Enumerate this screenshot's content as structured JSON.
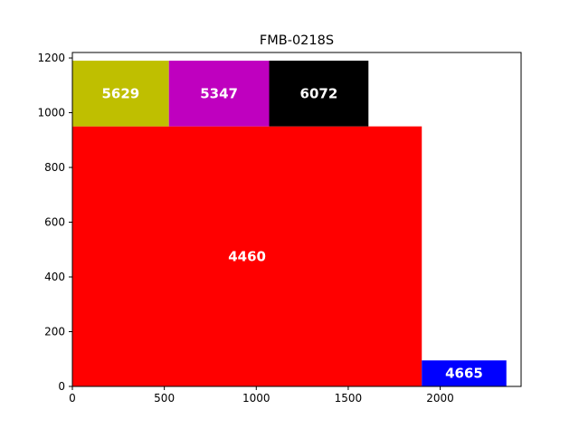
{
  "chart_data": {
    "type": "rectangle-packing",
    "title": "FMB-0218S",
    "xlabel": "",
    "ylabel": "",
    "xlim": [
      0,
      2440
    ],
    "ylim": [
      0,
      1220
    ],
    "xticks": [
      0,
      500,
      1000,
      1500,
      2000
    ],
    "yticks": [
      0,
      200,
      400,
      600,
      800,
      1000,
      1200
    ],
    "grid": false,
    "legend": "none",
    "rects": [
      {
        "label": "4460",
        "x0": 0,
        "x1": 1900,
        "y0": 0,
        "y1": 950,
        "color": "#ff0000"
      },
      {
        "label": "5629",
        "x0": 0,
        "x1": 525,
        "y0": 950,
        "y1": 1190,
        "color": "#bfbf00"
      },
      {
        "label": "5347",
        "x0": 525,
        "x1": 1070,
        "y0": 950,
        "y1": 1190,
        "color": "#bf00bf"
      },
      {
        "label": "6072",
        "x0": 1070,
        "x1": 1610,
        "y0": 950,
        "y1": 1190,
        "color": "#000000"
      },
      {
        "label": "4665",
        "x0": 1900,
        "x1": 2360,
        "y0": 0,
        "y1": 95,
        "color": "#0000ff"
      }
    ]
  }
}
